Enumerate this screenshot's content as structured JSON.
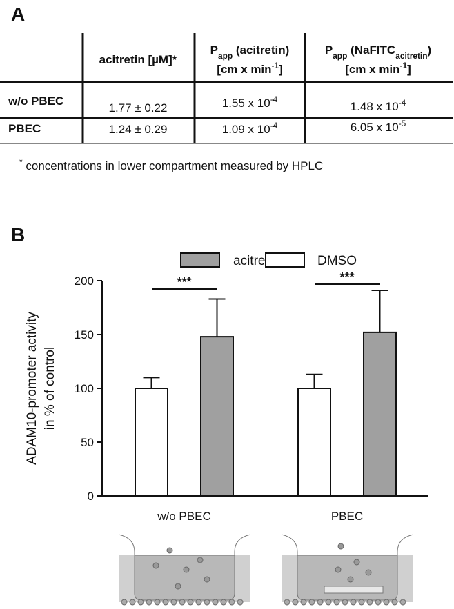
{
  "panel_labels": [
    "A",
    "B"
  ],
  "table": {
    "headers": [
      [
        [
          "acitretin [µM]*"
        ]
      ],
      [
        [
          "P",
          {
            "sub": "app"
          },
          " (acitretin)"
        ],
        [
          "[cm x min",
          {
            "sup": "-1"
          },
          "]"
        ]
      ],
      [
        [
          "P",
          {
            "sub": "app"
          },
          " (NaFITC",
          {
            "sub": "acitretin"
          },
          ")"
        ],
        [
          "[cm x min",
          {
            "sup": "-1"
          },
          "]"
        ]
      ]
    ],
    "rows": [
      {
        "label": "w/o PBEC",
        "cells": [
          [
            "1.77 ± 0.22"
          ],
          [
            "1.55 x 10",
            {
              "sup": "-4"
            }
          ],
          [
            "1.48 x 10",
            {
              "sup": "-4"
            }
          ]
        ]
      },
      {
        "label": "PBEC",
        "cells": [
          [
            "1.24 ± 0.29"
          ],
          [
            "1.09 x 10",
            {
              "sup": "-4"
            }
          ],
          [
            "6.05 x 10",
            {
              "sup": "-5"
            }
          ]
        ]
      }
    ],
    "footnote": [
      {
        "sup": "*"
      },
      " concentrations in lower compartment measured by HPLC"
    ]
  },
  "chart_data": {
    "type": "bar",
    "ylabel": [
      "ADAM10-promoter activity",
      "in % of control"
    ],
    "categories": [
      "w/o PBEC",
      "PBEC"
    ],
    "series": [
      {
        "name": "acitretin",
        "color": "#a0a0a0",
        "values": [
          148,
          152
        ],
        "errors": [
          35,
          39
        ]
      },
      {
        "name": "DMSO",
        "color": "#ffffff",
        "values": [
          100,
          100
        ],
        "errors": [
          10,
          13
        ]
      }
    ],
    "annotations": [
      "***",
      "***"
    ],
    "ylim": [
      0,
      200
    ],
    "yticks": [
      0,
      50,
      100,
      150,
      200
    ]
  }
}
